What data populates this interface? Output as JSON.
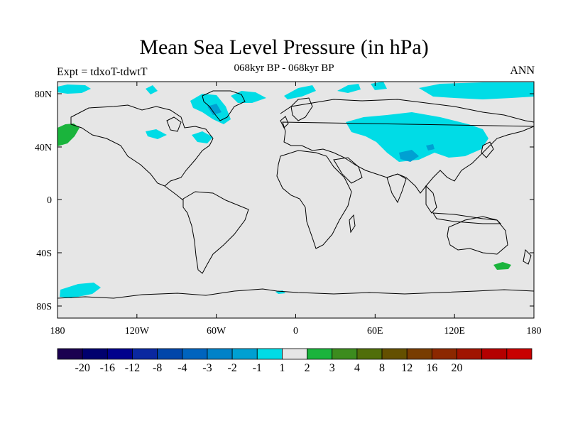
{
  "title": "Mean Sea Level Pressure (in hPa)",
  "subtitle": "068kyr BP - 068kyr BP",
  "left_label": "Expt = tdxoT-tdwtT",
  "right_label": "ANN",
  "colors": {
    "land_bg": "#e6e6e6",
    "coast": "#000000",
    "cyan": "#00dce6",
    "blue_mid": "#00a0d2",
    "green": "#1ab43c"
  },
  "map": {
    "lon_ticks": [
      "180",
      "120W",
      "60W",
      "0",
      "60E",
      "120E",
      "180"
    ],
    "lat_ticks": [
      "80N",
      "40N",
      "0",
      "40S",
      "80S"
    ]
  },
  "colorbar": {
    "colors": [
      "#1a0050",
      "#00006e",
      "#00008c",
      "#0a28a0",
      "#0046aa",
      "#0064be",
      "#0082c8",
      "#00a0d2",
      "#00dce6",
      "#e6e6e6",
      "#1ab43c",
      "#3c8c1e",
      "#506e0a",
      "#645000",
      "#783c00",
      "#8c2800",
      "#a01400",
      "#b40000",
      "#c80000"
    ],
    "labels": [
      "-20",
      "-16",
      "-12",
      "-8",
      "-4",
      "-3",
      "-2",
      "-1",
      "1",
      "2",
      "3",
      "4",
      "8",
      "12",
      "16",
      "20"
    ]
  }
}
